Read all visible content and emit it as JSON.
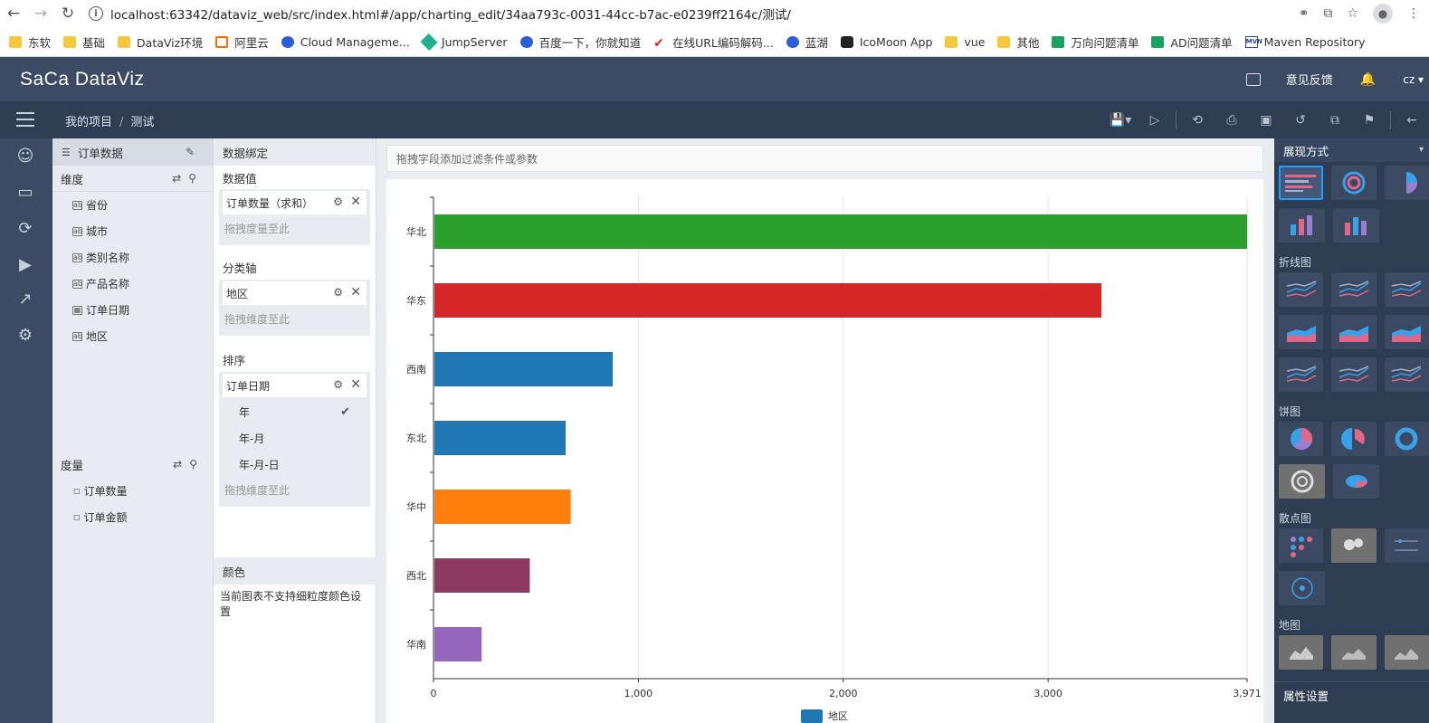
{
  "browser": {
    "url": "localhost:63342/dataviz_web/src/index.html#/app/charting_edit/34aa793c-0031-44cc-b7ac-e0239ff2164c/测试/",
    "bookmarks": [
      {
        "label": "东软",
        "icon": "folder"
      },
      {
        "label": "基础",
        "icon": "folder"
      },
      {
        "label": "DataViz环境",
        "icon": "folder"
      },
      {
        "label": "阿里云",
        "icon": "aliyun"
      },
      {
        "label": "Cloud Manageme...",
        "icon": "cloud"
      },
      {
        "label": "JumpServer",
        "icon": "jumpserver"
      },
      {
        "label": "百度一下，你就知道",
        "icon": "baidu"
      },
      {
        "label": "在线URL编码解码...",
        "icon": "check"
      },
      {
        "label": "蓝湖",
        "icon": "lanhu"
      },
      {
        "label": "IcoMoon App",
        "icon": "icomoon"
      },
      {
        "label": "vue",
        "icon": "folder"
      },
      {
        "label": "其他",
        "icon": "folder"
      },
      {
        "label": "万向问题清单",
        "icon": "sheet"
      },
      {
        "label": "AD问题清单",
        "icon": "sheet"
      },
      {
        "label": "Maven Repository",
        "icon": "mvn"
      }
    ]
  },
  "header": {
    "logo": "SaCa DataViz",
    "feedback": "意见反馈",
    "user": "cz"
  },
  "toolbar": {
    "breadcrumb_root": "我的项目",
    "breadcrumb_sep": "/",
    "breadcrumb_current": "测试"
  },
  "fields": {
    "dataset": "订单数据",
    "dimension_label": "维度",
    "dimensions": [
      "省份",
      "城市",
      "类别名称",
      "产品名称",
      "订单日期",
      "地区"
    ],
    "measure_label": "度量",
    "measures": [
      "订单数量",
      "订单金额"
    ]
  },
  "binding": {
    "title": "数据绑定",
    "value_label": "数据值",
    "value_chip": "订单数量（求和）",
    "value_drop": "拖拽度量至此",
    "axis_label": "分类轴",
    "axis_chip": "地区",
    "axis_drop": "拖拽维度至此",
    "sort_label": "排序",
    "sort_chip": "订单日期",
    "sort_options": [
      "年",
      "年-月",
      "年-月-日"
    ],
    "sort_selected": "年",
    "sort_drop": "拖拽维度至此",
    "color_label": "颜色",
    "color_note": "当前图表不支持细粒度颜色设置"
  },
  "filter_placeholder": "拖拽字段添加过滤条件或参数",
  "chart_data": {
    "type": "bar",
    "orientation": "horizontal",
    "categories": [
      "华北",
      "华东",
      "西南",
      "东北",
      "华中",
      "西北",
      "华南"
    ],
    "values": [
      3971,
      3260,
      875,
      645,
      670,
      470,
      235
    ],
    "colors": [
      "#2ca02c",
      "#d62728",
      "#1f77b4",
      "#1f77b4",
      "#ff7f0e",
      "#8c3a5f",
      "#9467bd"
    ],
    "x_ticks": [
      "0",
      "1,000",
      "2,000",
      "3,000",
      "3,971"
    ],
    "x_tick_values": [
      0,
      1000,
      2000,
      3000,
      3971
    ],
    "xlim": [
      0,
      3971
    ],
    "grid": true,
    "legend": [
      {
        "name": "地区",
        "color": "#1f77b4"
      }
    ],
    "legend_position": "bottom"
  },
  "gallery": {
    "title": "展现方式",
    "sections": [
      "折线图",
      "饼图",
      "散点图",
      "地图"
    ],
    "footer": "属性设置"
  }
}
